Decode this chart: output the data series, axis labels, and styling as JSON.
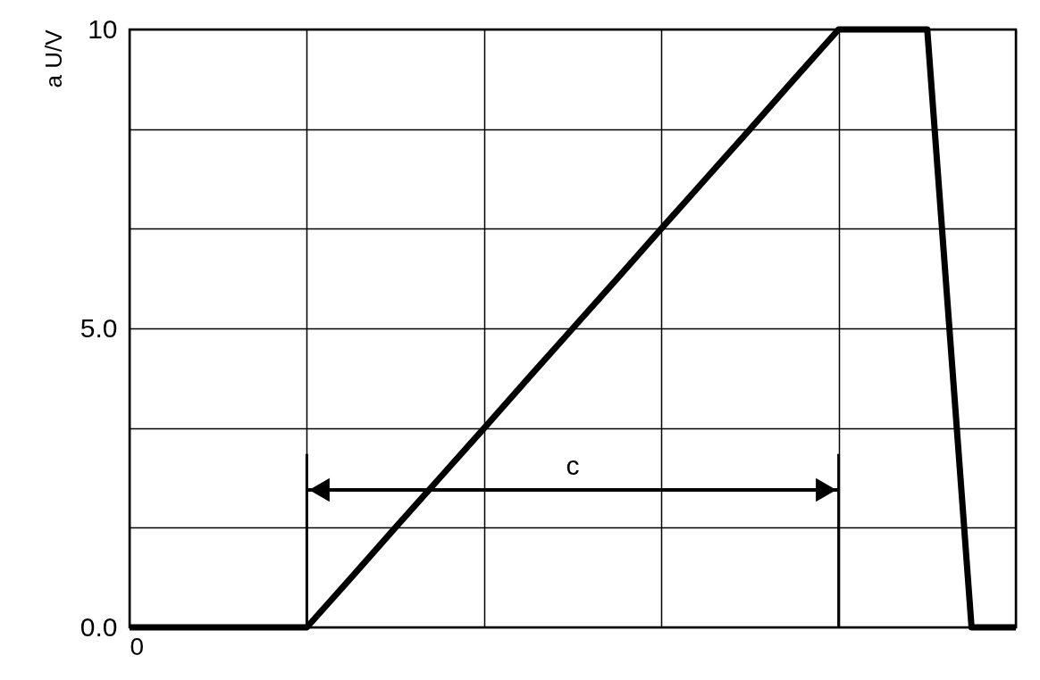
{
  "chart_data": {
    "type": "line",
    "ylabel": "a U/V",
    "categories": [
      "0",
      null,
      null,
      null,
      null,
      null,
      null,
      null,
      null,
      null,
      null,
      null,
      null,
      null,
      null,
      null,
      null,
      null,
      null,
      null,
      null
    ],
    "series": [
      {
        "color": "#000000",
        "values": [
          0,
          0,
          0,
          0,
          0,
          0.83,
          1.67,
          2.5,
          3.33,
          4.17,
          5,
          5.83,
          6.67,
          7.5,
          8.33,
          9.17,
          10,
          10,
          10,
          0,
          0
        ]
      }
    ],
    "ylim": [
      0,
      10
    ],
    "yticks": [
      {
        "value": 0,
        "label": "0.0"
      },
      {
        "value": 1.67,
        "label": null
      },
      {
        "value": 3.33,
        "label": null
      },
      {
        "value": 5,
        "label": "5.0"
      },
      {
        "value": 6.67,
        "label": null
      },
      {
        "value": 8.33,
        "label": null
      },
      {
        "value": 10,
        "label": "10"
      }
    ],
    "grid": true,
    "marker": "none",
    "line_style": "solid",
    "annotations": [
      "c"
    ]
  }
}
